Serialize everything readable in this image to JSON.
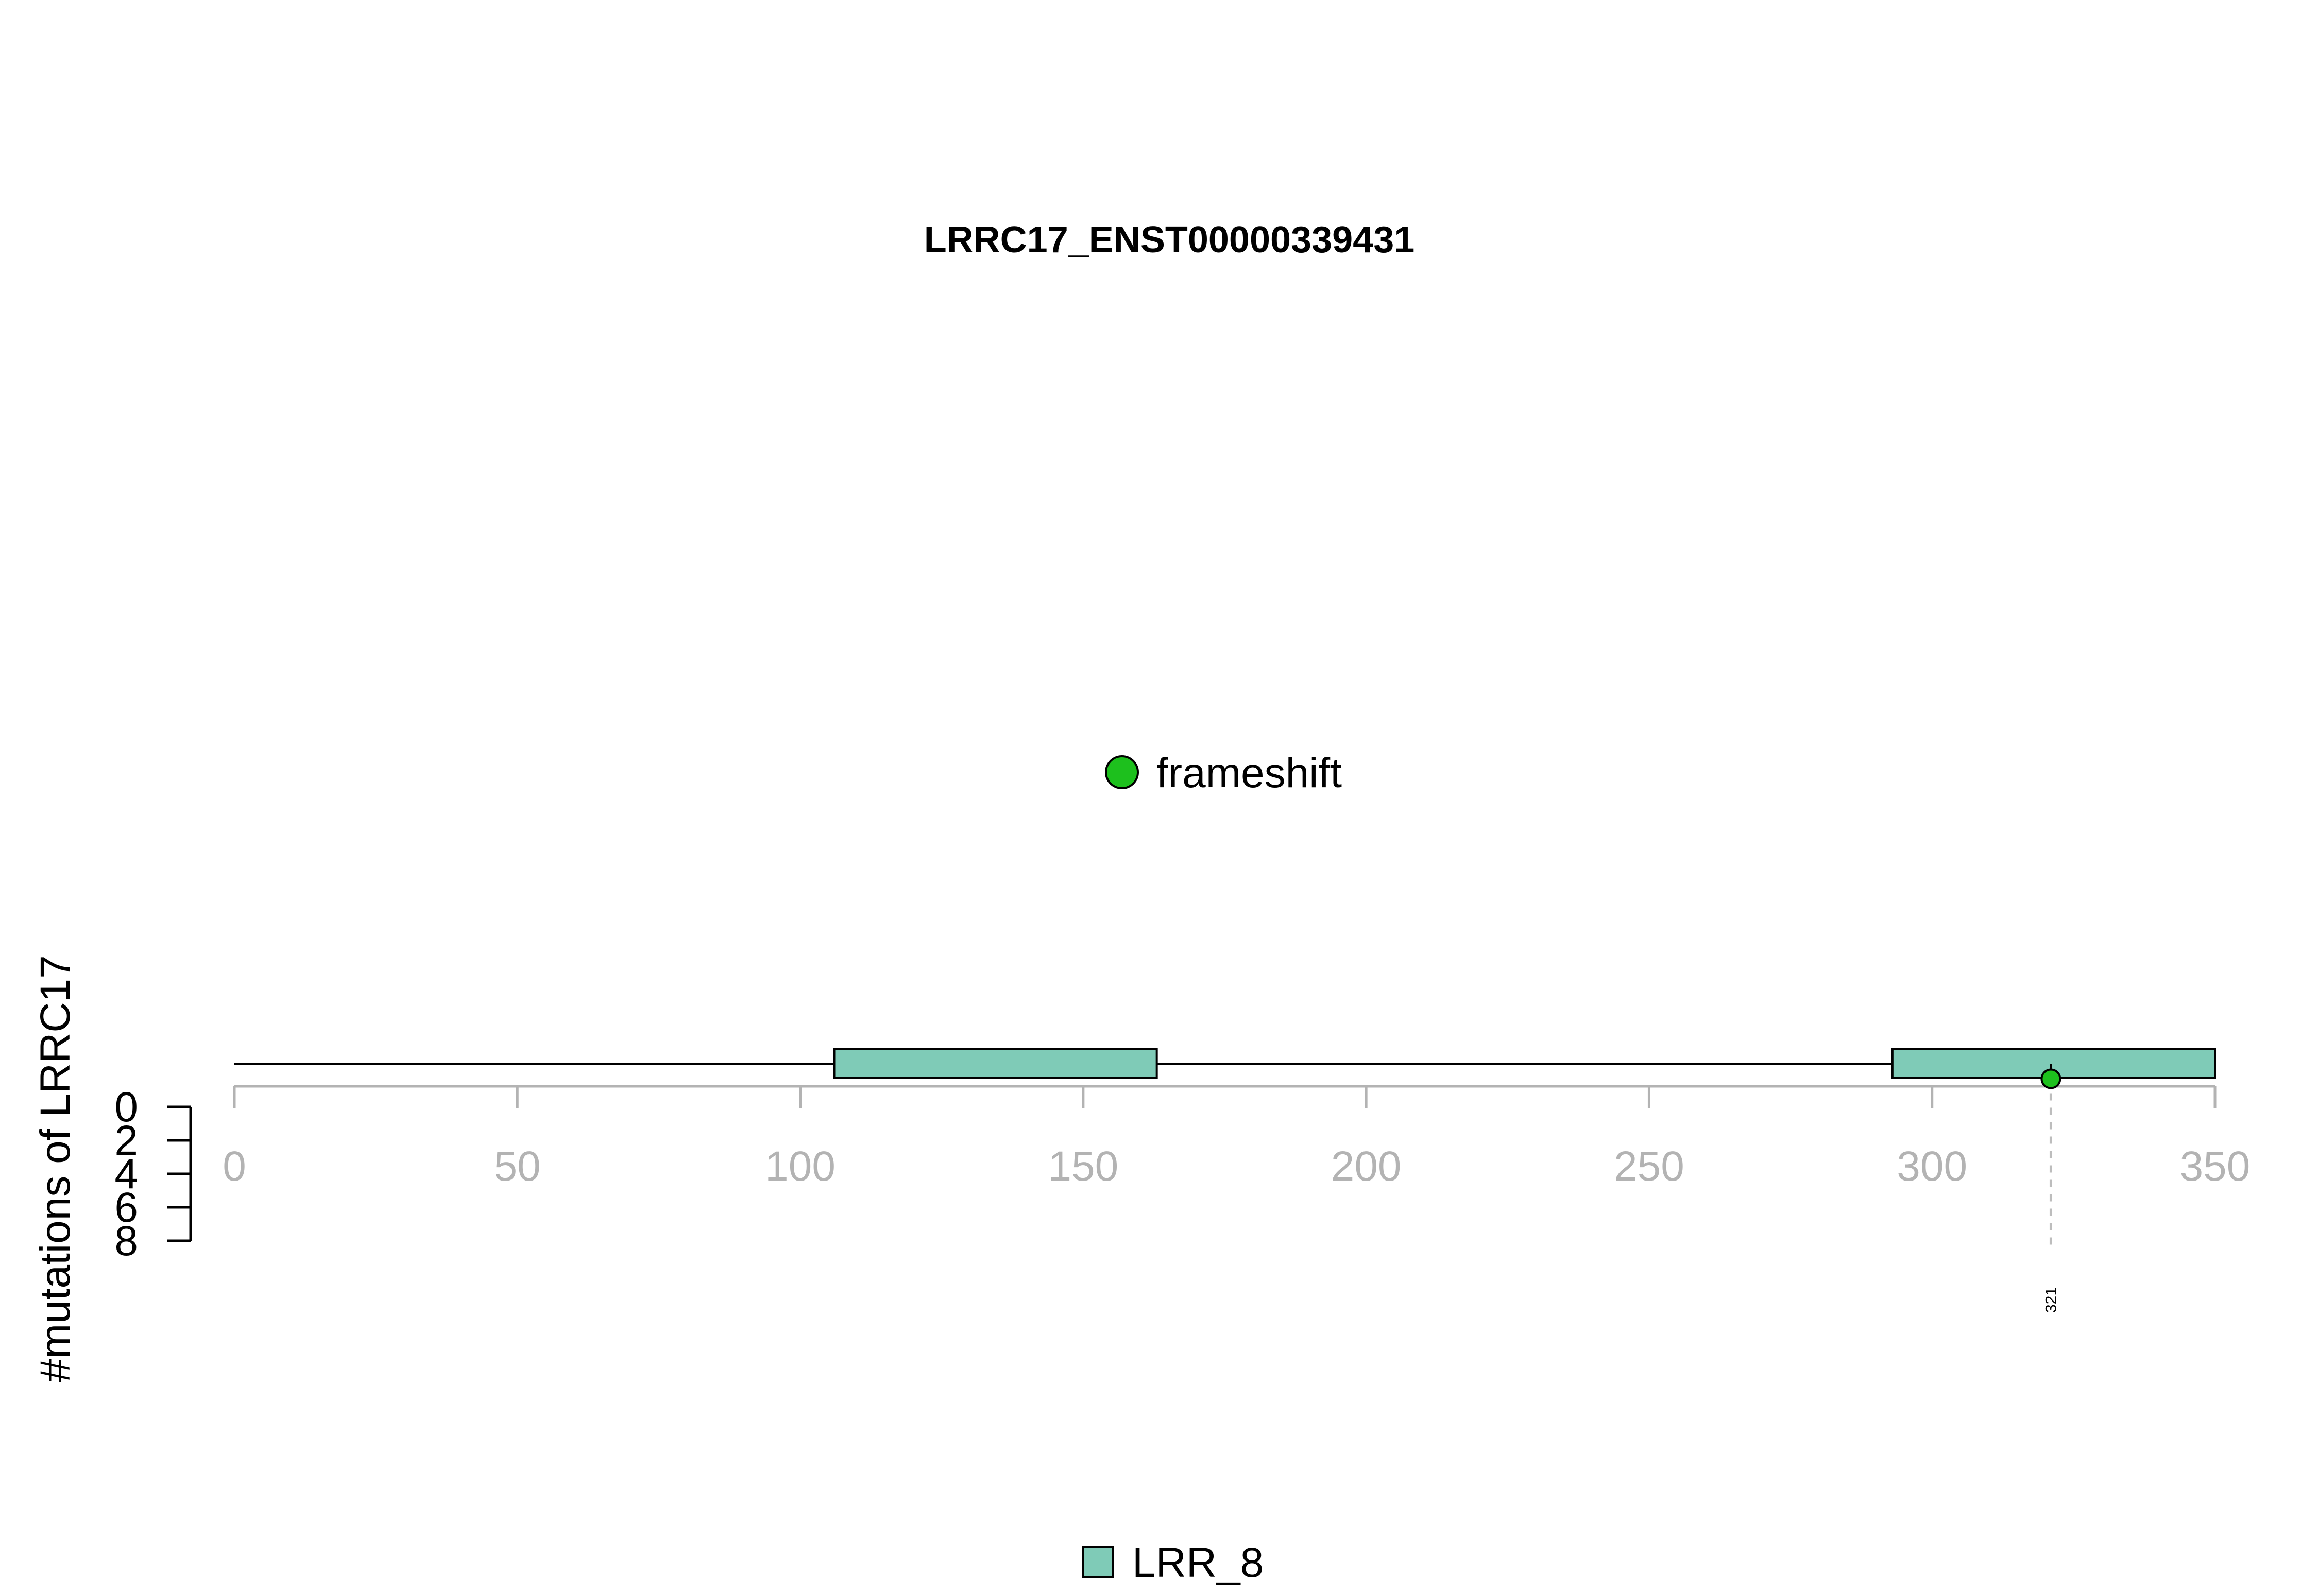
{
  "chart_data": {
    "type": "lollipop",
    "title": "LRRC17_ENST00000339431",
    "protein_length": 350,
    "x_ticks": [
      0,
      50,
      100,
      150,
      200,
      250,
      300,
      350
    ],
    "xlim": [
      0,
      350
    ],
    "ylabel": "#mutations of LRRC17",
    "y_ticks": [
      0,
      2,
      4,
      6,
      8
    ],
    "ylim": [
      0,
      8
    ],
    "domains": [
      {
        "name": "LRR_8",
        "start": 106,
        "end": 163,
        "color": "#7fcbb7"
      },
      {
        "name": "LRR_8",
        "start": 293,
        "end": 350,
        "color": "#7fcbb7"
      }
    ],
    "mutations": [
      {
        "position": 321,
        "count": 1,
        "type": "frameshift",
        "label": "321",
        "color": "#1dc01d"
      }
    ],
    "mutation_legend": [
      {
        "label": "frameshift",
        "color": "#1dc01d"
      }
    ],
    "domain_legend": [
      {
        "label": "LRR_8",
        "color": "#7fcbb7"
      }
    ]
  }
}
